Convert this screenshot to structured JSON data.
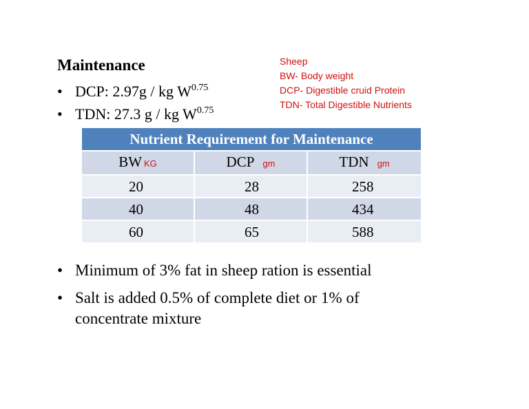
{
  "heading": "Maintenance",
  "bullets": [
    {
      "text": "DCP: 2.97g / kg W",
      "exp": "0.75"
    },
    {
      "text": "TDN: 27.3 g / kg W",
      "exp": "0.75"
    }
  ],
  "bullet_symbol": "•",
  "notes": [
    "Sheep",
    "BW- Body weight",
    "DCP- Digestible cruid Protein",
    "TDN- Total Digestible Nutrients"
  ],
  "table": {
    "title": "Nutrient Requirement for Maintenance",
    "headers": [
      {
        "label": "BW",
        "unit": "KG"
      },
      {
        "label": "DCP",
        "unit": "gm"
      },
      {
        "label": "TDN",
        "unit": "gm"
      }
    ],
    "rows": [
      [
        "20",
        "28",
        "258"
      ],
      [
        "40",
        "48",
        "434"
      ],
      [
        "60",
        "65",
        "588"
      ]
    ]
  },
  "points": [
    "Minimum of 3% fat in sheep ration is essential",
    "Salt is added 0.5% of complete diet or 1% of",
    "concentrate mixture"
  ],
  "colors": {
    "table_title_bg": "#4f81bd",
    "table_row_dark": "#d0d8e8",
    "table_row_light": "#e9edf4",
    "note_text": "#d01010"
  }
}
